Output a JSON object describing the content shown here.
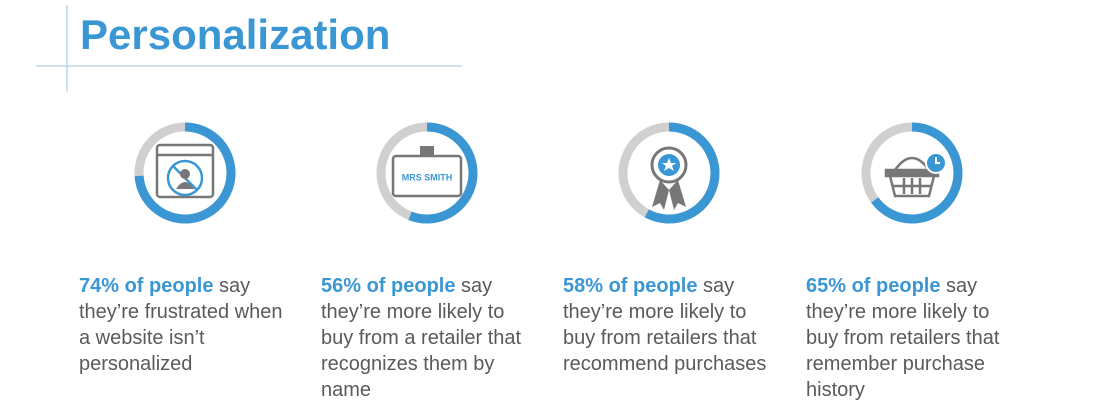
{
  "title": "Personalization",
  "chart_data": [
    {
      "type": "donut",
      "values": [
        74
      ],
      "ylim": [
        0,
        100
      ],
      "color": "#3a97d4",
      "track_color": "#d0d0d0",
      "value_labels": [
        "74% of people"
      ],
      "text": "say they’re frustrated when a website isn’t personalized"
    },
    {
      "type": "donut",
      "values": [
        56
      ],
      "ylim": [
        0,
        100
      ],
      "color": "#3a97d4",
      "track_color": "#d0d0d0",
      "value_labels": [
        "56% of people"
      ],
      "text": "say they’re more likely to buy from a retailer that recognizes them by name",
      "icon_text": "MRS SMITH"
    },
    {
      "type": "donut",
      "values": [
        58
      ],
      "ylim": [
        0,
        100
      ],
      "color": "#3a97d4",
      "track_color": "#d0d0d0",
      "value_labels": [
        "58% of people"
      ],
      "text": "say they’re more likely to buy from retailers that recommend purchases"
    },
    {
      "type": "donut",
      "values": [
        65
      ],
      "ylim": [
        0,
        100
      ],
      "color": "#3a97d4",
      "track_color": "#d0d0d0",
      "value_labels": [
        "65% of people"
      ],
      "text": "say they’re more likely to buy from retailers that remember purchase history"
    }
  ]
}
